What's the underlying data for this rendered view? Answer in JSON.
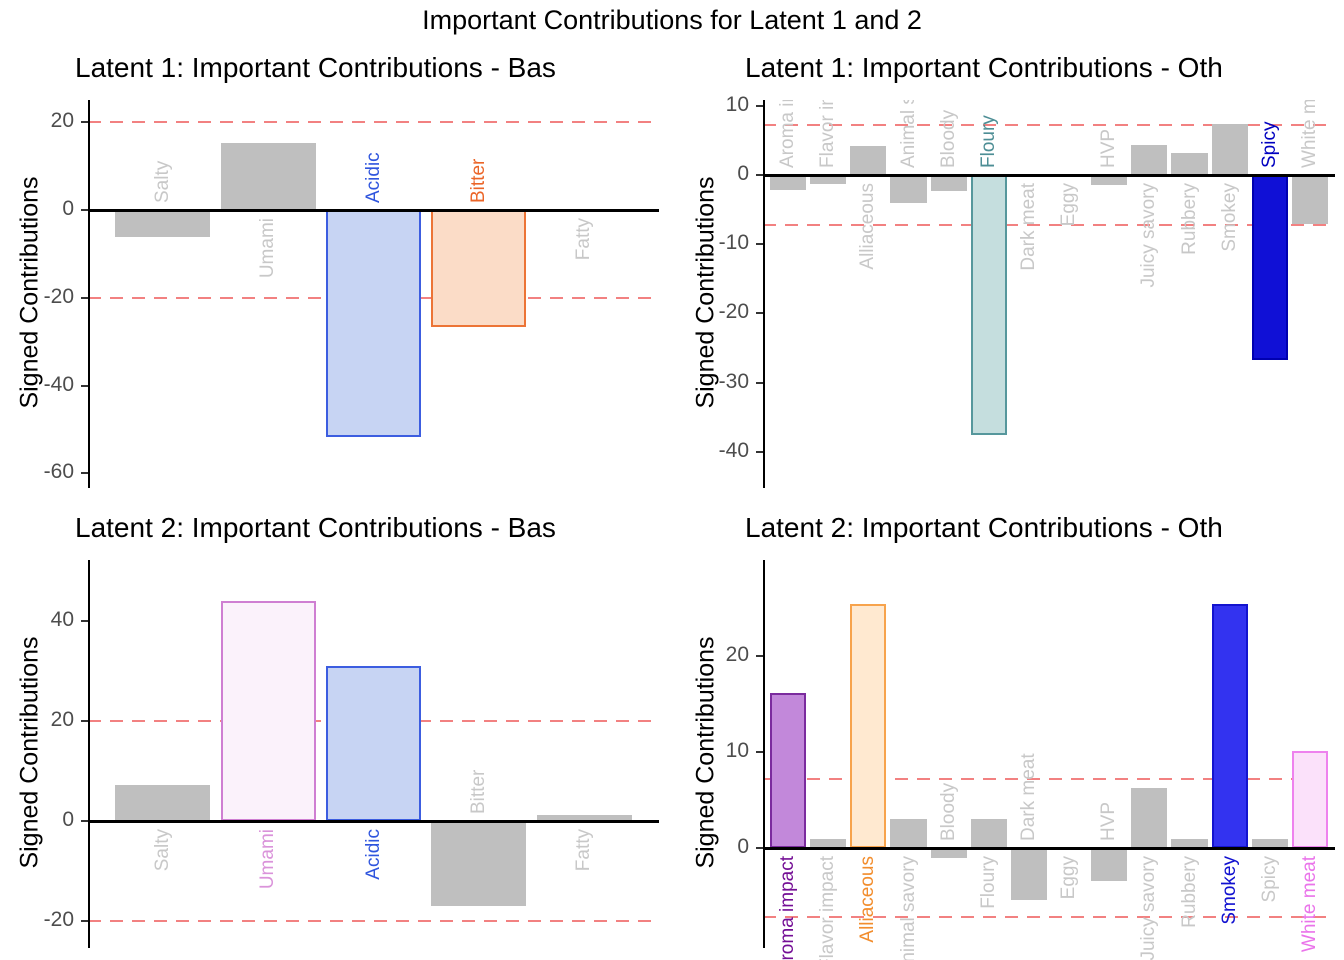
{
  "figure_title": "Important Contributions for Latent 1 and 2",
  "ylabel": "Signed Contributions",
  "colors": {
    "default_bar_fill": "#bfbfbf",
    "default_label_color": "#c8c8c8",
    "threshold_line": "#f28181",
    "axis_line": "#000000",
    "tick_text": "#4d4d4d"
  },
  "chart_data": {
    "type": "bar",
    "grid": "off",
    "charts": [
      {
        "id": "latent1-basic",
        "title": "Latent 1: Important Contributions - Bas",
        "ylabel": "Signed Contributions",
        "threshold": 20,
        "yticks": [
          20,
          0,
          -20,
          -40,
          -60
        ],
        "ylim": [
          -63.5,
          26
        ],
        "bars": [
          {
            "label": "Salty",
            "value": -6.1
          },
          {
            "label": "Umami",
            "value": 15.3
          },
          {
            "label": "Acidic",
            "value": -51.8,
            "fill": "#c7d4f3",
            "stroke": "#3c5de0",
            "label_color": "#2f55de"
          },
          {
            "label": "Bitter",
            "value": -26.6,
            "fill": "#fbdcc7",
            "stroke": "#ec7436",
            "label_color": "#eb6528"
          },
          {
            "label": "Fatty",
            "value": 0.2
          }
        ]
      },
      {
        "id": "latent1-other",
        "title": "Latent 1: Important Contributions - Oth",
        "ylabel": "Signed Contributions",
        "threshold": 7.2,
        "yticks": [
          10,
          0,
          -10,
          -20,
          -30,
          -40
        ],
        "ylim": [
          -45.3,
          10.8
        ],
        "bars": [
          {
            "label": "Aroma impact",
            "value": -2.2
          },
          {
            "label": "Flavor impact",
            "value": -1.3
          },
          {
            "label": "Alliaceous",
            "value": 4.2
          },
          {
            "label": "Animal savory",
            "value": -4.0
          },
          {
            "label": "Bloody",
            "value": -2.3
          },
          {
            "label": "Floury",
            "value": -37.6,
            "fill": "#c5dede",
            "stroke": "#56979c",
            "label_color": "#4d8e95"
          },
          {
            "label": "Dark meat",
            "value": 0.2
          },
          {
            "label": "Eggy",
            "value": 0.2
          },
          {
            "label": "HVP",
            "value": -1.5
          },
          {
            "label": "Juicy savory",
            "value": 4.3
          },
          {
            "label": "Rubbery",
            "value": 3.2
          },
          {
            "label": "Smokey",
            "value": 7.4
          },
          {
            "label": "Spicy",
            "value": -26.7,
            "fill": "#1010d6",
            "stroke": "#0000b0",
            "label_color": "#0000c0"
          },
          {
            "label": "White meat",
            "value": -7.1
          }
        ]
      },
      {
        "id": "latent2-basic",
        "title": "Latent 2: Important Contributions - Bas",
        "ylabel": "Signed Contributions",
        "threshold": 20,
        "yticks": [
          40,
          20,
          0,
          -20
        ],
        "ylim": [
          -25.4,
          52.2
        ],
        "bars": [
          {
            "label": "Salty",
            "value": 7.2
          },
          {
            "label": "Umami",
            "value": 44.0,
            "fill": "#fbf2fb",
            "stroke": "#cf7fd2",
            "label_color": "#da93da"
          },
          {
            "label": "Acidic",
            "value": 31.0,
            "fill": "#c7d4f3",
            "stroke": "#3c5de0",
            "label_color": "#2f55de"
          },
          {
            "label": "Bitter",
            "value": -17.0
          },
          {
            "label": "Fatty",
            "value": 1.2
          }
        ]
      },
      {
        "id": "latent2-other",
        "title": "Latent 2: Important Contributions - Oth",
        "ylabel": "Signed Contributions",
        "threshold": 7.2,
        "yticks": [
          20,
          10,
          0
        ],
        "ylim": [
          -10.4,
          30
        ],
        "bars": [
          {
            "label": "Aroma impact",
            "value": 16.1,
            "fill": "#c288da",
            "stroke": "#7b2b9e",
            "label_color": "#740e95"
          },
          {
            "label": "Flavor impact",
            "value": 0.9
          },
          {
            "label": "Alliaceous",
            "value": 25.4,
            "fill": "#ffe9d0",
            "stroke": "#f7a34c",
            "label_color": "#f28d2d"
          },
          {
            "label": "Animal savory",
            "value": 3.0
          },
          {
            "label": "Bloody",
            "value": -1.0
          },
          {
            "label": "Floury",
            "value": 3.0
          },
          {
            "label": "Dark meat",
            "value": -5.4
          },
          {
            "label": "Eggy",
            "value": 0.1
          },
          {
            "label": "HVP",
            "value": -3.4
          },
          {
            "label": "Juicy savory",
            "value": 6.2
          },
          {
            "label": "Rubbery",
            "value": 0.9
          },
          {
            "label": "Smokey",
            "value": 25.4,
            "fill": "#3333f0",
            "stroke": "#1414cf",
            "label_color": "#1111d0"
          },
          {
            "label": "Spicy",
            "value": 0.9
          },
          {
            "label": "White meat",
            "value": 10.1,
            "fill": "#fbe1fa",
            "stroke": "#ee82ee",
            "label_color": "#ea74ea"
          }
        ]
      }
    ]
  }
}
